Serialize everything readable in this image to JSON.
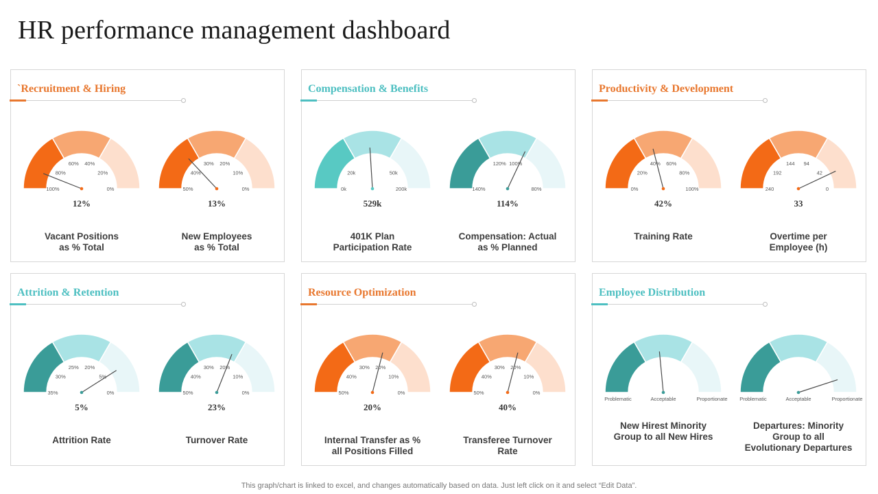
{
  "title": "HR performance management dashboard",
  "footer": "This graph/chart is linked to excel,  and changes automatically based on data. Just left click on it and select “Edit Data”.",
  "colors": {
    "orange": [
      "#f36a16",
      "#f7a772",
      "#fddfcd"
    ],
    "teal_light": [
      "#58c9c3",
      "#a9e3e5",
      "#e8f6f8"
    ],
    "teal_dark": [
      "#3a9c98",
      "#a9e3e5",
      "#e8f6f8"
    ],
    "orange_title": "#e8772e",
    "teal_title": "#4dbfc1"
  },
  "panels": [
    {
      "title": "`Recruitment & Hiring",
      "title_color": "#e8772e",
      "gauges": [
        {
          "value_label": "12%",
          "label": "Vacant Positions\nas %  Total",
          "ticks": [
            "100%",
            "80%",
            "60%",
            "40%",
            "20%",
            "0%"
          ],
          "fraction": 0.12,
          "palette": "orange"
        },
        {
          "value_label": "13%",
          "label": "New Employees\nas %  Total",
          "ticks": [
            "50%",
            "40%",
            "30%",
            "20%",
            "10%",
            "0%"
          ],
          "fraction": 0.26,
          "palette": "orange"
        }
      ]
    },
    {
      "title": "Compensation & Benefits",
      "title_color": "#4dbfc1",
      "gauges": [
        {
          "value_label": "529k",
          "label": "401K Plan\nParticipation Rate",
          "ticks": [
            "0k",
            "20k",
            "",
            "",
            "50k",
            "200k"
          ],
          "fraction": 0.48,
          "palette": "teal_light"
        },
        {
          "value_label": "114%",
          "label": "Compensation:  Actual\nas %  Planned",
          "ticks": [
            "140%",
            "",
            "120%",
            "100%",
            "",
            "80%"
          ],
          "fraction": 0.64,
          "palette": "teal_dark"
        }
      ]
    },
    {
      "title": "Productivity & Development",
      "title_color": "#e8772e",
      "gauges": [
        {
          "value_label": "42%",
          "label": "Training Rate",
          "ticks": [
            "0%",
            "20%",
            "40%",
            "60%",
            "80%",
            "100%"
          ],
          "fraction": 0.42,
          "palette": "orange"
        },
        {
          "value_label": "33",
          "label": "Overtime per\nEmployee (h)",
          "ticks": [
            "240",
            "192",
            "144",
            "94",
            "42",
            "0"
          ],
          "fraction": 0.86,
          "palette": "orange"
        }
      ]
    },
    {
      "title": "Attrition  & Retention",
      "title_color": "#4dbfc1",
      "gauges": [
        {
          "value_label": "5%",
          "label": "Attrition  Rate",
          "ticks": [
            "35%",
            "30%",
            "25%",
            "20%",
            "5%",
            "0%"
          ],
          "fraction": 0.82,
          "palette": "teal_dark"
        },
        {
          "value_label": "23%",
          "label": "Turnover Rate",
          "ticks": [
            "50%",
            "40%",
            "30%",
            "20%",
            "10%",
            "0%"
          ],
          "fraction": 0.62,
          "palette": "teal_dark"
        }
      ]
    },
    {
      "title": "Resource Optimization",
      "title_color": "#e8772e",
      "gauges": [
        {
          "value_label": "20%",
          "label": "Internal Transfer as %\nall Positions Filled",
          "ticks": [
            "50%",
            "40%",
            "30%",
            "20%",
            "10%",
            "0%"
          ],
          "fraction": 0.58,
          "palette": "orange"
        },
        {
          "value_label": "40%",
          "label": "Transferee Turnover\nRate",
          "ticks": [
            "50%",
            "40%",
            "30%",
            "20%",
            "10%",
            "0%"
          ],
          "fraction": 0.58,
          "palette": "orange"
        }
      ]
    },
    {
      "title": "Employee Distribution",
      "title_color": "#4dbfc1",
      "gauges": [
        {
          "value_label": "",
          "label": "New Hirest Minority\nGroup to all New Hires",
          "ticks": [
            "Problematic",
            "",
            "Acceptable",
            "",
            "",
            "Proportionate"
          ],
          "fraction": 0.47,
          "palette": "teal_dark",
          "category": true
        },
        {
          "value_label": "",
          "label": "Departures: Minority\nGroup to all\nEvolutionary Departures",
          "ticks": [
            "Problematic",
            "",
            "Acceptable",
            "",
            "",
            "Proportionate"
          ],
          "fraction": 0.9,
          "palette": "teal_dark",
          "category": true
        }
      ]
    }
  ],
  "chart_data": {
    "type": "gauge",
    "title": "HR performance management dashboard",
    "gauges": [
      {
        "panel": "`Recruitment & Hiring",
        "name": "Vacant Positions as % Total",
        "value": "12%"
      },
      {
        "panel": "`Recruitment & Hiring",
        "name": "New Employees as % Total",
        "value": "13%"
      },
      {
        "panel": "Compensation & Benefits",
        "name": "401K Plan Participation Rate",
        "value": "529k"
      },
      {
        "panel": "Compensation & Benefits",
        "name": "Compensation: Actual as % Planned",
        "value": "114%"
      },
      {
        "panel": "Productivity & Development",
        "name": "Training Rate",
        "value": "42%"
      },
      {
        "panel": "Productivity & Development",
        "name": "Overtime per Employee (h)",
        "value": "33"
      },
      {
        "panel": "Attrition & Retention",
        "name": "Attrition Rate",
        "value": "5%"
      },
      {
        "panel": "Attrition & Retention",
        "name": "Turnover Rate",
        "value": "23%"
      },
      {
        "panel": "Resource Optimization",
        "name": "Internal Transfer as % all Positions Filled",
        "value": "20%"
      },
      {
        "panel": "Resource Optimization",
        "name": "Transferee Turnover Rate",
        "value": "40%"
      },
      {
        "panel": "Employee Distribution",
        "name": "New Hirest Minority Group to all New Hires",
        "value": "Acceptable"
      },
      {
        "panel": "Employee Distribution",
        "name": "Departures: Minority Group to all Evolutionary Departures",
        "value": "Proportionate"
      }
    ]
  }
}
